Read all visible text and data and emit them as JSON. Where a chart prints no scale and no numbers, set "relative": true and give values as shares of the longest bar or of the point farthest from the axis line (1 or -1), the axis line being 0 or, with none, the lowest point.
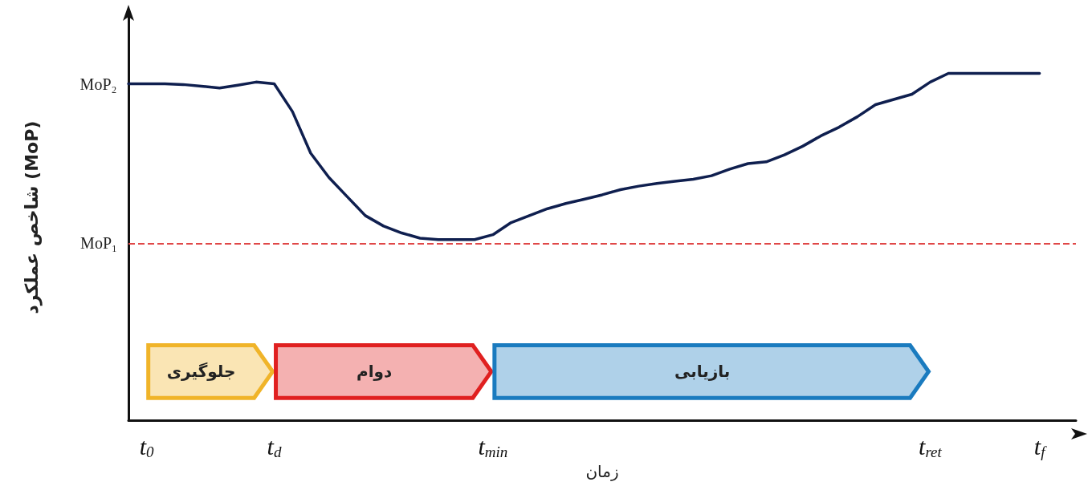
{
  "chart_data": {
    "type": "line",
    "relative": true,
    "xlabel": "زمان",
    "ylabel": "شاخص عملکرد (MoP)",
    "categories": [
      null,
      "t$_{0}$",
      null,
      null,
      null,
      null,
      null,
      null,
      "t$_{d}$",
      null,
      null,
      null,
      null,
      null,
      null,
      null,
      null,
      null,
      null,
      null,
      "t$_{min}$",
      null,
      null,
      null,
      null,
      null,
      null,
      null,
      null,
      null,
      null,
      null,
      null,
      null,
      null,
      null,
      null,
      null,
      null,
      null,
      null,
      null,
      null,
      null,
      "t$_{ret}$",
      null,
      null,
      null,
      null,
      null,
      "t$_{f}$",
      null,
      null
    ],
    "series": [
      {
        "color": "#0f1f4f",
        "values": [
          0.97,
          0.97,
          0.97,
          0.968,
          0.963,
          0.958,
          0.966,
          0.975,
          0.97,
          0.89,
          0.77,
          0.7,
          0.645,
          0.59,
          0.56,
          0.54,
          0.525,
          0.521,
          0.521,
          0.521,
          0.535,
          0.57,
          0.59,
          0.61,
          0.625,
          0.637,
          0.65,
          0.665,
          0.675,
          0.683,
          0.689,
          0.695,
          0.705,
          0.724,
          0.74,
          0.745,
          0.765,
          0.79,
          0.82,
          0.845,
          0.875,
          0.91,
          0.925,
          0.94,
          0.975,
          1.0,
          1.0,
          1.0,
          1.0,
          1.0,
          1.0,
          null,
          null
        ]
      }
    ],
    "ref_lines": [
      {
        "axis": "y",
        "value": 0.51,
        "label": "MoP₁",
        "color": "#e04848",
        "line_style": "dashed"
      }
    ],
    "annotations": [
      "MoP₂"
    ],
    "bands": [
      {
        "axis": "x",
        "from": "t$_{0}$",
        "to": "t$_{d}$",
        "label": "جلوگیری",
        "color": "#f0b429"
      },
      {
        "axis": "x",
        "from": "t$_{d}$",
        "to": "t$_{min}$",
        "label": "دوام",
        "color": "#e02020"
      },
      {
        "axis": "x",
        "from": "t$_{min}$",
        "to": "t$_{ret}$",
        "label": "بازیابی",
        "color": "#1a7bbf"
      }
    ],
    "marker": "none",
    "line_style": "solid"
  }
}
